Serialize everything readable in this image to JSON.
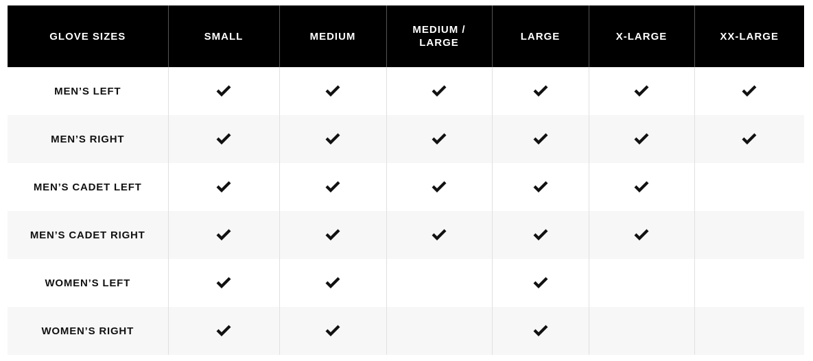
{
  "table": {
    "headers": [
      "GLOVE SIZES",
      "SMALL",
      "MEDIUM",
      "MEDIUM / LARGE",
      "LARGE",
      "X-LARGE",
      "XX-LARGE"
    ],
    "rows": [
      {
        "label": "MEN’S LEFT",
        "available": [
          true,
          true,
          true,
          true,
          true,
          true
        ]
      },
      {
        "label": "MEN’S RIGHT",
        "available": [
          true,
          true,
          true,
          true,
          true,
          true
        ]
      },
      {
        "label": "MEN’S CADET LEFT",
        "available": [
          true,
          true,
          true,
          true,
          true,
          false
        ]
      },
      {
        "label": "MEN’S CADET RIGHT",
        "available": [
          true,
          true,
          true,
          true,
          true,
          false
        ]
      },
      {
        "label": "WOMEN’S LEFT",
        "available": [
          true,
          true,
          false,
          true,
          false,
          false
        ]
      },
      {
        "label": "WOMEN’S RIGHT",
        "available": [
          true,
          true,
          false,
          true,
          false,
          false
        ]
      }
    ],
    "check_icon": "checkmark-icon",
    "colors": {
      "header_bg": "#000000",
      "header_text": "#ffffff",
      "alt_row_bg": "#f7f7f7",
      "check": "#111111"
    }
  }
}
